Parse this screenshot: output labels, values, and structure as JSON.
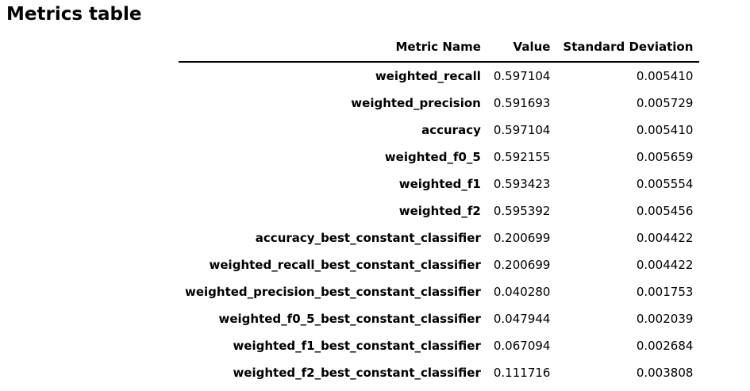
{
  "title": "Metrics table",
  "table": {
    "columns": [
      "Metric Name",
      "Value",
      "Standard Deviation"
    ],
    "rows": [
      {
        "name": "weighted_recall",
        "value": "0.597104",
        "std": "0.005410"
      },
      {
        "name": "weighted_precision",
        "value": "0.591693",
        "std": "0.005729"
      },
      {
        "name": "accuracy",
        "value": "0.597104",
        "std": "0.005410"
      },
      {
        "name": "weighted_f0_5",
        "value": "0.592155",
        "std": "0.005659"
      },
      {
        "name": "weighted_f1",
        "value": "0.593423",
        "std": "0.005554"
      },
      {
        "name": "weighted_f2",
        "value": "0.595392",
        "std": "0.005456"
      },
      {
        "name": "accuracy_best_constant_classifier",
        "value": "0.200699",
        "std": "0.004422"
      },
      {
        "name": "weighted_recall_best_constant_classifier",
        "value": "0.200699",
        "std": "0.004422"
      },
      {
        "name": "weighted_precision_best_constant_classifier",
        "value": "0.040280",
        "std": "0.001753"
      },
      {
        "name": "weighted_f0_5_best_constant_classifier",
        "value": "0.047944",
        "std": "0.002039"
      },
      {
        "name": "weighted_f1_best_constant_classifier",
        "value": "0.067094",
        "std": "0.002684"
      },
      {
        "name": "weighted_f2_best_constant_classifier",
        "value": "0.111716",
        "std": "0.003808"
      }
    ]
  }
}
